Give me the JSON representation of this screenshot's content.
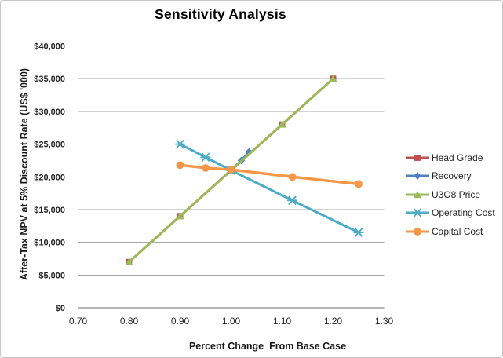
{
  "chart_data": {
    "type": "line",
    "title": "Sensitivity Analysis",
    "xlabel": "Percent Change  From Base Case",
    "ylabel": "After-Tax NPV at 5% Discount Rate (US$ '000)",
    "xlim": [
      0.7,
      1.3
    ],
    "ylim": [
      0,
      40000
    ],
    "x_tick_values": [
      0.7,
      0.8,
      0.9,
      1.0,
      1.1,
      1.2,
      1.3
    ],
    "x_tick_labels": [
      "0.70",
      "0.80",
      "0.90",
      "1.00",
      "1.10",
      "1.20",
      "1.30"
    ],
    "y_tick_values": [
      0,
      5000,
      10000,
      15000,
      20000,
      25000,
      30000,
      35000,
      40000
    ],
    "y_tick_labels": [
      "$0",
      "$5,000",
      "$10,000",
      "$15,000",
      "$20,000",
      "$25,000",
      "$30,000",
      "$35,000",
      "$40,000"
    ],
    "grid": "horizontal",
    "legend_position": "right",
    "series": [
      {
        "name": "Head Grade",
        "color": "#C0504D",
        "marker": "square",
        "points": [
          [
            0.8,
            7000
          ],
          [
            0.9,
            14000
          ],
          [
            1.0,
            21000
          ],
          [
            1.1,
            28000
          ],
          [
            1.2,
            35000
          ]
        ]
      },
      {
        "name": "Recovery",
        "color": "#4F81BD",
        "marker": "diamond",
        "points": [
          [
            1.0,
            21000
          ],
          [
            1.02,
            22500
          ],
          [
            1.035,
            23800
          ]
        ]
      },
      {
        "name": "U3O8 Price",
        "color": "#9BBB59",
        "marker": "triangle",
        "points": [
          [
            0.8,
            7000
          ],
          [
            0.9,
            14000
          ],
          [
            1.0,
            21000
          ],
          [
            1.1,
            28000
          ],
          [
            1.2,
            35000
          ]
        ]
      },
      {
        "name": "Operating Cost",
        "color": "#4BACC6",
        "marker": "asterisk",
        "points": [
          [
            0.9,
            25000
          ],
          [
            0.95,
            23000
          ],
          [
            1.0,
            21000
          ],
          [
            1.12,
            16400
          ],
          [
            1.25,
            11500
          ]
        ]
      },
      {
        "name": "Capital Cost",
        "color": "#F79646",
        "marker": "circle",
        "points": [
          [
            0.9,
            21800
          ],
          [
            0.95,
            21350
          ],
          [
            1.0,
            21100
          ],
          [
            1.12,
            20000
          ],
          [
            1.25,
            18900
          ]
        ]
      }
    ],
    "style": {
      "gridline_color": "#A6A6A6",
      "axis_color": "#6E6E6E",
      "tick_color": "#262626",
      "title_color": "#000000"
    }
  }
}
